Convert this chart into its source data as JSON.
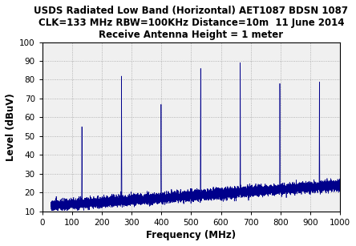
{
  "title_line1": "USDS Radiated Low Band (Horizontal) AET1087 BDSN 1087",
  "title_line2": "CLK=133 MHz RBW=100KHz Distance=10m  11 June 2014",
  "title_line3": "Receive Antenna Height = 1 meter",
  "xlabel": "Frequency (MHz)",
  "ylabel": "Level (dBuV)",
  "xlim": [
    0,
    1000
  ],
  "ylim": [
    10,
    100
  ],
  "xticks": [
    0,
    100,
    200,
    300,
    400,
    500,
    600,
    700,
    800,
    900,
    1000
  ],
  "yticks": [
    10,
    20,
    30,
    40,
    50,
    60,
    70,
    80,
    90,
    100
  ],
  "line_color": "#00008B",
  "background_color": "#ffffff",
  "plot_bg_color": "#f0f0f0",
  "grid_color": "#999999",
  "spike_freqs": [
    133,
    266,
    399,
    532,
    665,
    798,
    931
  ],
  "spike_levels": [
    55,
    82,
    67,
    86,
    89,
    78,
    79
  ],
  "noise_floor_start": 13,
  "noise_floor_end": 24,
  "title_fontsize": 8.5,
  "axis_label_fontsize": 8.5,
  "tick_fontsize": 7.5,
  "seed": 42
}
